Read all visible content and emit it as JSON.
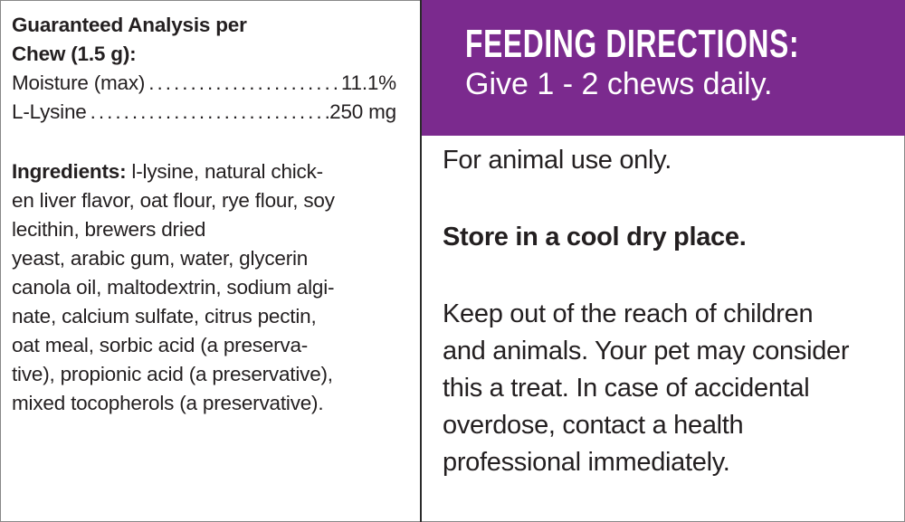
{
  "analysis": {
    "heading_lines": [
      "Guaranteed Analysis per",
      "Chew (1.5 g):"
    ],
    "rows": [
      {
        "label": "Moisture (max)",
        "value": "11.1%"
      },
      {
        "label": "L-Lysine",
        "value": "250 mg"
      }
    ]
  },
  "ingredients": {
    "label": "Ingredients:",
    "lines": [
      " l-lysine, natural chick-",
      "en liver flavor, oat flour, rye flour, soy",
      "lecithin, brewers dried",
      "yeast, arabic gum, water, glycerin",
      "canola oil, maltodextrin, sodium algi-",
      "nate, calcium sulfate, citrus pectin,",
      "oat meal, sorbic acid (a preserva-",
      "tive), propionic acid (a preservative),",
      "mixed tocopherols (a preservative)."
    ]
  },
  "feeding": {
    "title": "FEEDING DIRECTIONS:",
    "instruction": "Give 1 - 2 chews daily.",
    "color": "#7b2a8e"
  },
  "notes": {
    "animal_use": "For animal use only.",
    "storage": "Store in a cool dry place.",
    "warning_lines": [
      "Keep out of the reach of children",
      "and animals. Your pet may consider",
      "this a treat. In case of accidental",
      "overdose, contact a health",
      "professional immediately."
    ]
  }
}
